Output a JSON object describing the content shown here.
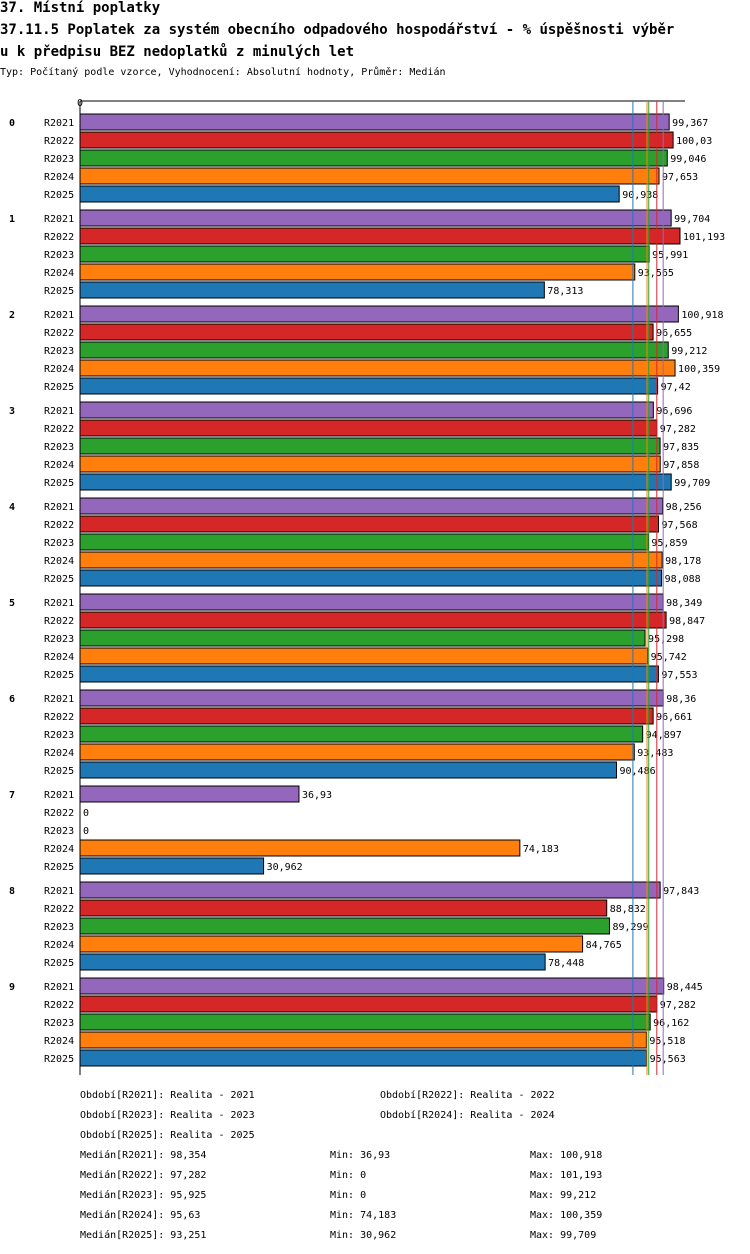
{
  "header": {
    "title1": "37. Místní poplatky",
    "title2a": "37.11.5 Poplatek za systém obecního odpadového hospodářství  - % úspěšnosti výběr",
    "title2b": "u k předpisu BEZ nedoplatků z minulých let",
    "subtitle": "Typ: Počítaný podle vzorce, Vyhodnocení: Absolutní hodnoty, Průměr: Medián"
  },
  "chart_data": {
    "type": "bar",
    "orientation": "horizontal",
    "axis_zero_label": "0",
    "xlim": [
      0,
      101.193
    ],
    "categories": [
      "0",
      "1",
      "2",
      "3",
      "4",
      "5",
      "6",
      "7",
      "8",
      "9"
    ],
    "series": [
      {
        "name": "R2021",
        "color": "#9467bd",
        "values": [
          "99,367",
          "99,704",
          "100,918",
          "96,696",
          "98,256",
          "98,349",
          "98,36",
          "36,93",
          "97,843",
          "98,445"
        ]
      },
      {
        "name": "R2022",
        "color": "#d62728",
        "values": [
          "100,03",
          "101,193",
          "96,655",
          "97,282",
          "97,568",
          "98,847",
          "96,661",
          "0",
          "88,832",
          "97,282"
        ]
      },
      {
        "name": "R2023",
        "color": "#2ca02c",
        "values": [
          "99,046",
          "95,991",
          "99,212",
          "97,835",
          "95,859",
          "95,298",
          "94,897",
          "0",
          "89,299",
          "96,162"
        ]
      },
      {
        "name": "R2024",
        "color": "#ff7f0e",
        "values": [
          "97,653",
          "93,565",
          "100,359",
          "97,858",
          "98,178",
          "95,742",
          "93,483",
          "74,183",
          "84,765",
          "95,518"
        ]
      },
      {
        "name": "R2025",
        "color": "#1f77b4",
        "values": [
          "90,938",
          "78,313",
          "97,42",
          "99,709",
          "98,088",
          "97,553",
          "90,486",
          "30,962",
          "78,448",
          "95,563"
        ]
      }
    ],
    "medians": {
      "R2021": 98.354,
      "R2022": 97.282,
      "R2023": 95.925,
      "R2024": 95.63,
      "R2025": 93.251
    }
  },
  "legend": {
    "periods": [
      "Období[R2021]: Realita - 2021",
      "Období[R2022]: Realita - 2022",
      "Období[R2023]: Realita - 2023",
      "Období[R2024]: Realita - 2024",
      "Období[R2025]: Realita - 2025"
    ],
    "stats": [
      {
        "median": "Medián[R2021]: 98,354",
        "min": "Min: 36,93",
        "max": "Max: 100,918"
      },
      {
        "median": "Medián[R2022]: 97,282",
        "min": "Min: 0",
        "max": "Max: 101,193"
      },
      {
        "median": "Medián[R2023]: 95,925",
        "min": "Min: 0",
        "max": "Max: 99,212"
      },
      {
        "median": "Medián[R2024]: 95,63",
        "min": "Min: 74,183",
        "max": "Max: 100,359"
      },
      {
        "median": "Medián[R2025]: 93,251",
        "min": "Min: 30,962",
        "max": "Max: 99,709"
      }
    ]
  }
}
